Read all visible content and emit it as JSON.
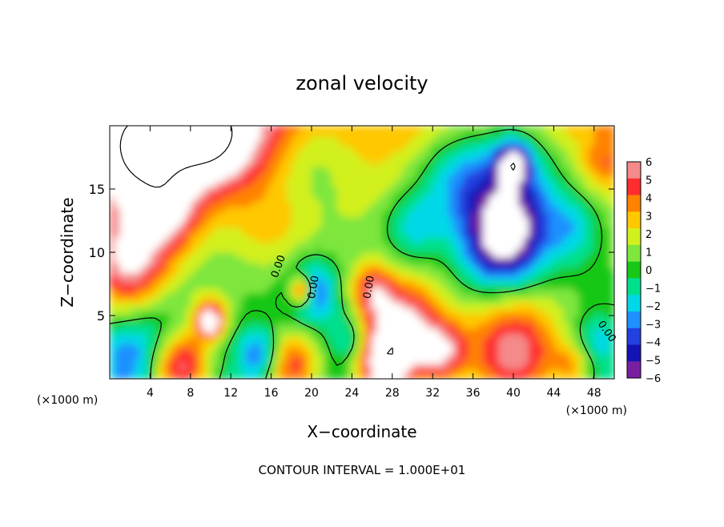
{
  "chart_data": {
    "type": "heatmap",
    "title": "zonal velocity",
    "xlabel": "X−coordinate",
    "ylabel": "Z−coordinate",
    "x_unit": "(×1000 m)",
    "y_unit": "(×1000 m)",
    "xlim": [
      0,
      50
    ],
    "ylim": [
      0,
      20
    ],
    "x_ticks": [
      4,
      8,
      12,
      16,
      20,
      24,
      28,
      32,
      36,
      40,
      44,
      48
    ],
    "y_ticks": [
      5,
      10,
      15
    ],
    "colorbar": {
      "levels": [
        -6,
        -5,
        -4,
        -3,
        -2,
        -1,
        0,
        1,
        2,
        3,
        4,
        5,
        6
      ],
      "labels": [
        "−6",
        "−5",
        "−4",
        "−3",
        "−2",
        "−1",
        "0",
        "1",
        "2",
        "3",
        "4",
        "5",
        "6"
      ],
      "colors": [
        "#7a1fa2",
        "#1414b4",
        "#2340e0",
        "#1e90ff",
        "#00d8e8",
        "#00e08c",
        "#17c817",
        "#7ee63c",
        "#d2f01e",
        "#ffc800",
        "#ff8200",
        "#ff2d2d",
        "#f48a8a"
      ]
    },
    "over_range_color": "#ffffff",
    "contour_labels": [
      "0.00",
      "0.00",
      "0.00",
      "0.00"
    ],
    "contour_interval_text": "CONTOUR INTERVAL =  1.000E+01",
    "blobs": [
      {
        "x": 3,
        "z": 18,
        "r": 5,
        "v": 8
      },
      {
        "x": 10,
        "z": 19,
        "r": 4,
        "v": 7
      },
      {
        "x": 6,
        "z": 13,
        "r": 3,
        "v": 3.5
      },
      {
        "x": 2,
        "z": 9,
        "r": 4,
        "v": 6
      },
      {
        "x": 15,
        "z": 20,
        "r": 4,
        "v": 2
      },
      {
        "x": 16,
        "z": 12,
        "r": 4,
        "v": 1.5
      },
      {
        "x": 20,
        "z": 17,
        "r": 4,
        "v": -1.5
      },
      {
        "x": 10,
        "z": 5,
        "r": 2,
        "v": 4
      },
      {
        "x": 10,
        "z": 4.5,
        "r": 1,
        "v": 6
      },
      {
        "x": 20,
        "z": 7,
        "r": 2.5,
        "v": -4.5
      },
      {
        "x": 19,
        "z": 7,
        "r": 1.2,
        "v": 7
      },
      {
        "x": 29,
        "z": 4,
        "r": 4,
        "v": 7
      },
      {
        "x": 26,
        "z": 7,
        "r": 2,
        "v": 4
      },
      {
        "x": 30,
        "z": 12,
        "r": 3,
        "v": -3
      },
      {
        "x": 34,
        "z": 16,
        "r": 4,
        "v": -3.5
      },
      {
        "x": 40,
        "z": 16,
        "r": 5,
        "v": -5
      },
      {
        "x": 39,
        "z": 11,
        "r": 4,
        "v": -8
      },
      {
        "x": 40,
        "z": 17,
        "r": 1.5,
        "v": -7
      },
      {
        "x": 46,
        "z": 12,
        "r": 3,
        "v": -3
      },
      {
        "x": 49,
        "z": 17,
        "r": 2,
        "v": 2
      },
      {
        "x": 5,
        "z": 4,
        "r": 3,
        "v": -1.5
      },
      {
        "x": 2,
        "z": 2,
        "r": 3,
        "v": -2.5
      },
      {
        "x": 7,
        "z": 1,
        "r": 3,
        "v": 7
      },
      {
        "x": 18,
        "z": 1,
        "r": 3,
        "v": 6
      },
      {
        "x": 27,
        "z": 1,
        "r": 3,
        "v": 7
      },
      {
        "x": 15,
        "z": 2,
        "r": 2,
        "v": -4
      },
      {
        "x": 24,
        "z": 3,
        "r": 2,
        "v": -3
      },
      {
        "x": 33,
        "z": 2,
        "r": 2.5,
        "v": 5
      },
      {
        "x": 40,
        "z": 2,
        "r": 5,
        "v": 7
      },
      {
        "x": 46,
        "z": 1,
        "r": 2,
        "v": 3
      },
      {
        "x": 48,
        "z": 3,
        "r": 2,
        "v": -2
      }
    ],
    "base_field": {
      "top_value": 3.5,
      "bottom_value": -1.2,
      "mid_value": 0.5,
      "mid_z": 8
    }
  }
}
